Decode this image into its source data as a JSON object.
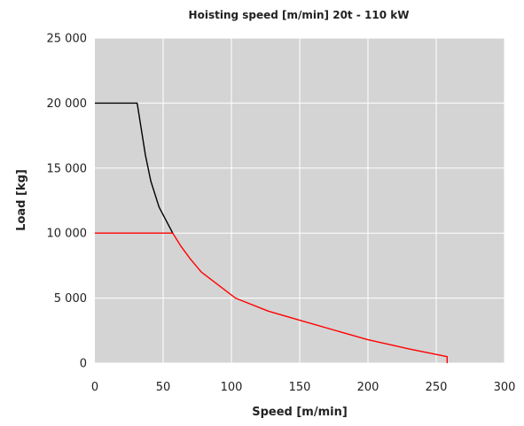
{
  "chart_data": {
    "type": "line",
    "title": "Hoisting speed [m/min] 20t - 110 kW",
    "xlabel": "Speed [m/min]",
    "ylabel": "Load [kg]",
    "xlim": [
      0,
      300
    ],
    "ylim": [
      0,
      25000
    ],
    "xticks": [
      "0",
      "50",
      "100",
      "150",
      "200",
      "250",
      "300"
    ],
    "yticks": [
      "0",
      "5 000",
      "10 000",
      "15 000",
      "20 000",
      "25 000"
    ],
    "grid": true,
    "legend": "none",
    "colors": {
      "plot_background": "#d4d4d4",
      "grid": "#ffffff",
      "series_black": "#000000",
      "series_red": "#ff0000"
    },
    "series": [
      {
        "color": "#000000",
        "x": [
          0,
          31,
          37,
          41,
          47,
          57
        ],
        "y": [
          20000,
          20000,
          16000,
          14000,
          12000,
          10000
        ]
      },
      {
        "color": "#ff0000",
        "x": [
          0,
          57,
          63,
          70,
          78,
          103,
          127,
          150,
          180,
          200,
          230,
          258,
          258
        ],
        "y": [
          10000,
          10000,
          9000,
          8000,
          7000,
          5000,
          4000,
          3300,
          2400,
          1800,
          1100,
          500,
          0
        ]
      }
    ]
  }
}
